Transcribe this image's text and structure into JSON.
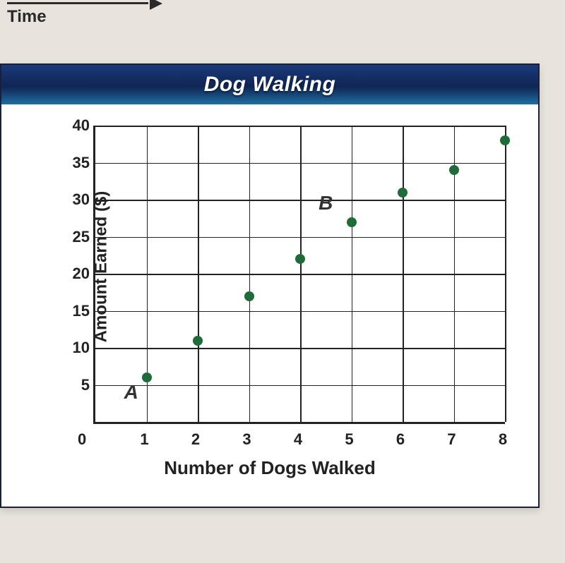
{
  "header_time_label": "Time",
  "chart": {
    "type": "scatter",
    "title": "Dog Walking",
    "xlabel": "Number of Dogs Walked",
    "ylabel": "Amount Earned ($)",
    "xlim": [
      0,
      8
    ],
    "ylim": [
      0,
      40
    ],
    "xtick_step": 1,
    "ytick_step": 5,
    "xtick_labels": [
      "1",
      "2",
      "3",
      "4",
      "5",
      "6",
      "7",
      "8"
    ],
    "ytick_labels": [
      "5",
      "10",
      "15",
      "20",
      "25",
      "30",
      "35",
      "40"
    ],
    "origin_label": "0",
    "background_color": "#ffffff",
    "grid_color": "#222222",
    "axis_color": "#222222",
    "point_color": "#1f6b3a",
    "point_radius": 7,
    "label_fontsize": 24,
    "tick_fontsize": 22,
    "title_fontsize": 30,
    "header_gradient": [
      "#1b3a7a",
      "#0f2554",
      "#1f6fa0"
    ],
    "points": [
      {
        "x": 1,
        "y": 6
      },
      {
        "x": 2,
        "y": 11
      },
      {
        "x": 3,
        "y": 17
      },
      {
        "x": 4,
        "y": 22
      },
      {
        "x": 5,
        "y": 27
      },
      {
        "x": 6,
        "y": 31
      },
      {
        "x": 7,
        "y": 34
      },
      {
        "x": 8,
        "y": 38
      }
    ],
    "point_annotations": [
      {
        "label": "A",
        "near_x": 1,
        "near_y": 6,
        "dx": -0.3,
        "dy": -2
      },
      {
        "label": "B",
        "near_x": 5,
        "near_y": 27,
        "dx": -0.5,
        "dy": 2.5
      }
    ]
  }
}
